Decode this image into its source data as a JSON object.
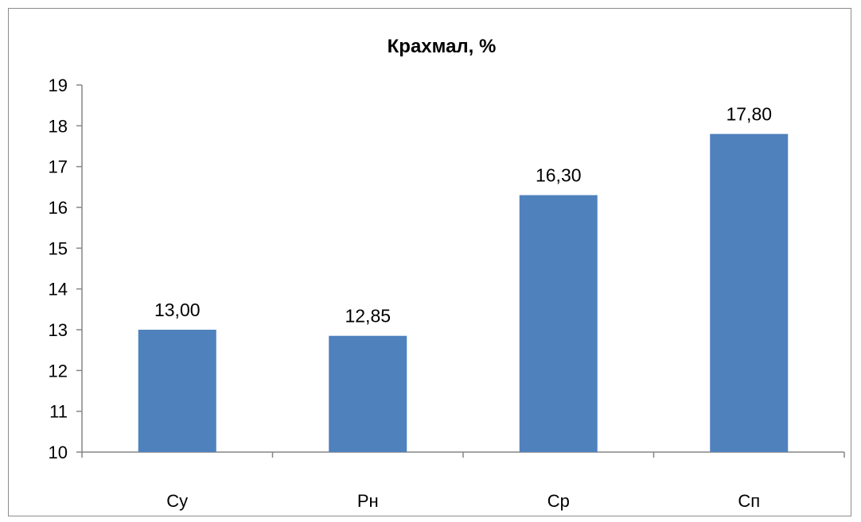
{
  "chart_data": {
    "type": "bar",
    "title": "Крахмал, %",
    "categories": [
      "Су",
      "Рн",
      "Ср",
      "Сп"
    ],
    "values": [
      13.0,
      12.85,
      16.3,
      17.8
    ],
    "data_labels": [
      "13,00",
      "12,85",
      "16,30",
      "17,80"
    ],
    "ylim": [
      10,
      19
    ],
    "yticks": [
      10,
      11,
      12,
      13,
      14,
      15,
      16,
      17,
      18,
      19
    ],
    "xlabel": "",
    "ylabel": "",
    "grid": false,
    "legend": "none",
    "bar_color": "#4f81bd"
  }
}
